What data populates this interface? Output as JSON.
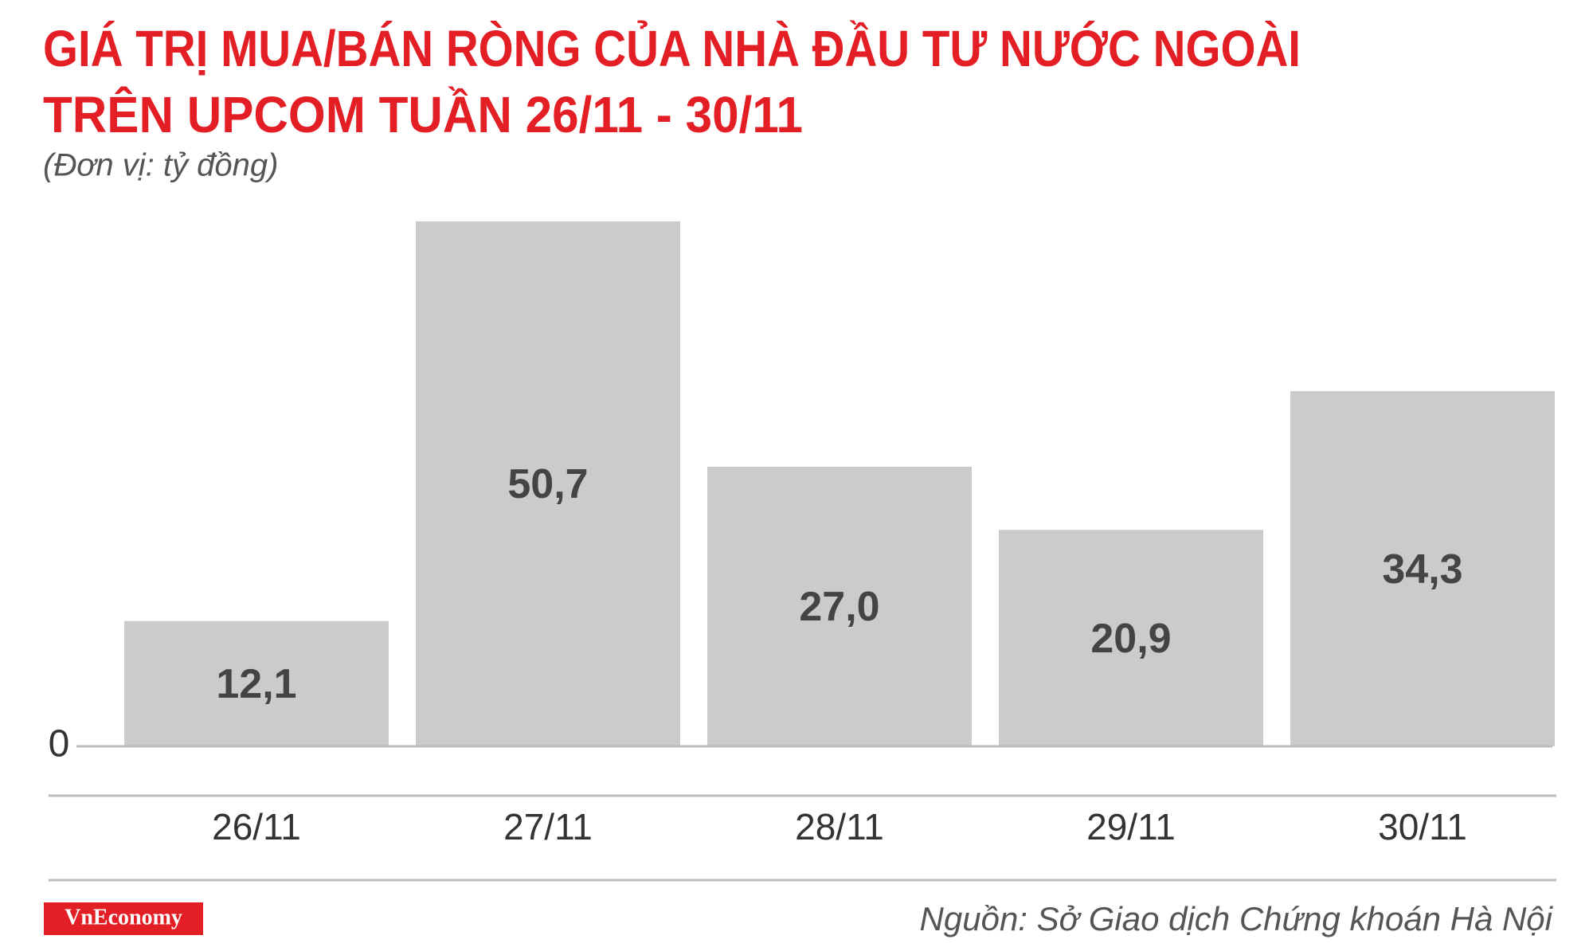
{
  "chart_data": {
    "type": "bar",
    "title": [
      "GIÁ TRỊ MUA/BÁN RÒNG CỦA NHÀ ĐẦU TƯ NƯỚC NGOÀI",
      "TRÊN UPCOM TUẦN 26/11 - 30/11"
    ],
    "subtitle": "(Đơn vị: tỷ đồng)",
    "categories": [
      "26/11",
      "27/11",
      "28/11",
      "29/11",
      "30/11"
    ],
    "values": [
      12.1,
      50.7,
      27.0,
      20.9,
      34.3
    ],
    "value_labels": [
      "12,1",
      "50,7",
      "27,0",
      "20,9",
      "34,3"
    ],
    "color": "#cccbcb",
    "ylim": [
      0,
      52
    ],
    "yticks": [
      0
    ],
    "source": "Nguồn: Sở Giao dịch Chứng khoán Hà Nội",
    "logo": "VnEconomy"
  }
}
